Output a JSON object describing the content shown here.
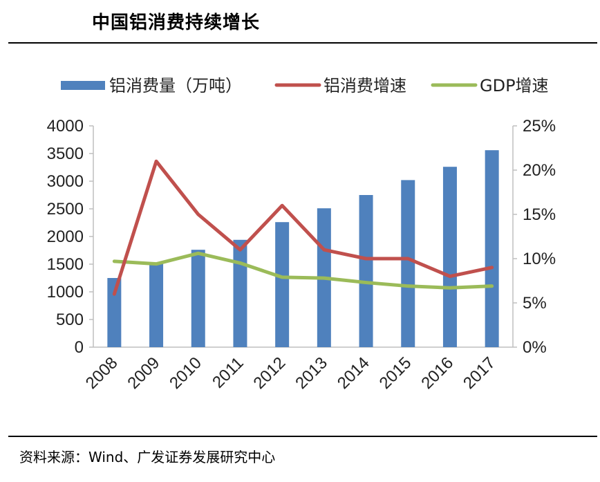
{
  "header": {
    "title": "中国铝消费持续增长"
  },
  "footer": {
    "source": "资料来源：Wind、广发证券发展研究中心"
  },
  "colors": {
    "bar": "#4f81bd",
    "growth_line": "#c0504d",
    "gdp_line": "#9bbb59",
    "axis": "#bfbfbf"
  },
  "chart_data": {
    "type": "bar",
    "categories": [
      "2008",
      "2009",
      "2010",
      "2011",
      "2012",
      "2013",
      "2014",
      "2015",
      "2016",
      "2017"
    ],
    "series": [
      {
        "name": "铝消费量（万吨）",
        "type": "bar",
        "axis": "left",
        "values": [
          1250,
          1510,
          1760,
          1940,
          2260,
          2510,
          2750,
          3020,
          3260,
          3560
        ]
      },
      {
        "name": "铝消费增速",
        "type": "line",
        "axis": "right",
        "values": [
          6,
          21,
          15,
          11,
          16,
          11,
          10,
          10,
          8,
          9
        ]
      },
      {
        "name": "GDP增速",
        "type": "line",
        "axis": "right",
        "values": [
          9.7,
          9.4,
          10.6,
          9.5,
          7.9,
          7.8,
          7.3,
          6.9,
          6.7,
          6.9
        ]
      }
    ],
    "y_left": {
      "lim": [
        0,
        4000
      ],
      "ticks": [
        "0",
        "500",
        "1000",
        "1500",
        "2000",
        "2500",
        "3000",
        "3500",
        "4000"
      ]
    },
    "y_right": {
      "lim": [
        0,
        25
      ],
      "ticks": [
        "0%",
        "5%",
        "10%",
        "15%",
        "20%",
        "25%"
      ]
    },
    "legend_position": "top",
    "grid": false
  }
}
